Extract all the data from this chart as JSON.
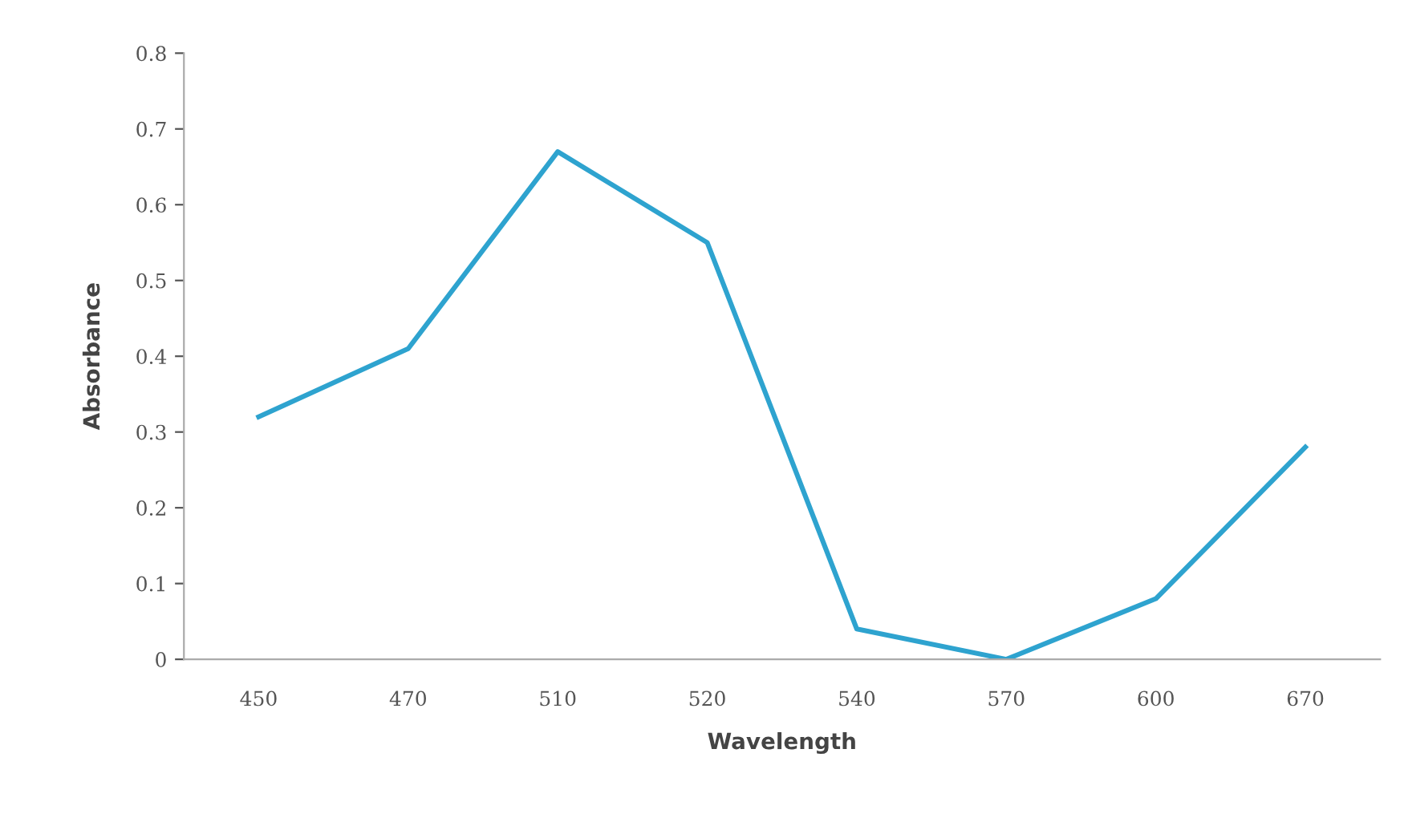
{
  "chart_data": {
    "type": "line",
    "xlabel": "Wavelength",
    "ylabel": "Absorbance",
    "categories": [
      "450",
      "470",
      "510",
      "520",
      "540",
      "570",
      "600",
      "670"
    ],
    "series": [
      {
        "color": "#2ea3cf",
        "values": [
          0.32,
          0.41,
          0.67,
          0.55,
          0.04,
          0.0,
          0.08,
          0.28
        ]
      }
    ],
    "ylim": [
      0,
      0.8
    ],
    "yticks": [
      0,
      0.1,
      0.2,
      0.3,
      0.4,
      0.5,
      0.6,
      0.7,
      0.8
    ],
    "grid": false,
    "marker": "none",
    "line_style": "solid"
  }
}
